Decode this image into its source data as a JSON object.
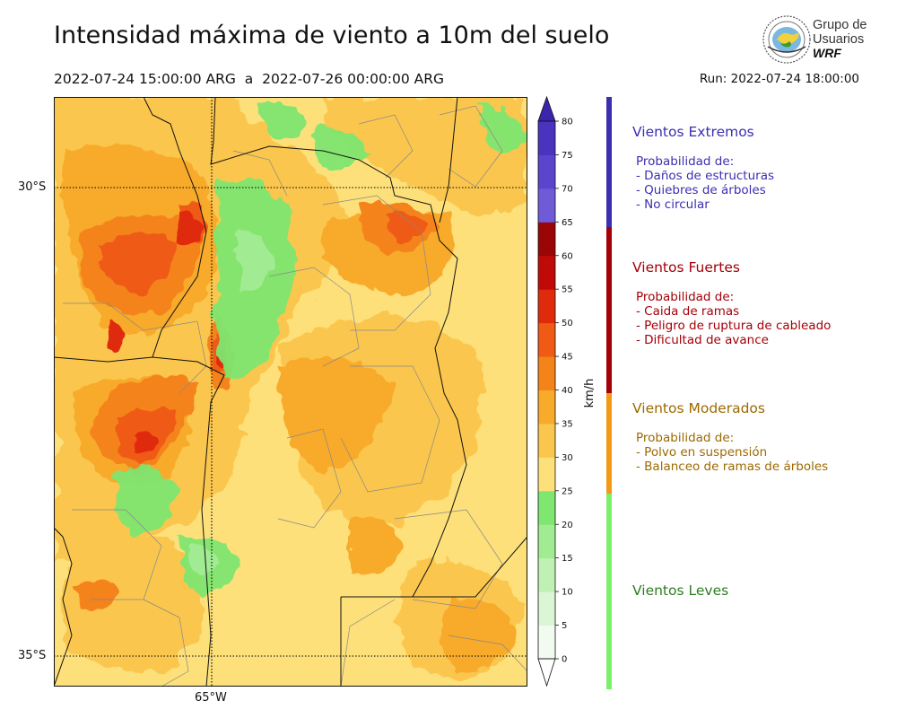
{
  "header": {
    "title": "Intensidad máxima de viento a 10m del suelo",
    "period": "2022-07-24 15:00:00 ARG  a  2022-07-26 00:00:00 ARG",
    "run": "Run: 2022-07-24 18:00:00"
  },
  "logo": {
    "line1": "Grupo de",
    "line2": "Usuarios",
    "line3": "WRF"
  },
  "map": {
    "lat_labels": [
      "30°S",
      "35°S"
    ],
    "lon_labels": [
      "65°W"
    ]
  },
  "colorbar": {
    "unit_label": "km/h",
    "ticks": [
      "0",
      "5",
      "10",
      "15",
      "20",
      "25",
      "30",
      "35",
      "40",
      "45",
      "50",
      "55",
      "60",
      "65",
      "70",
      "75",
      "80"
    ],
    "colors": [
      "#f2fbef",
      "#daf6d4",
      "#bff1b4",
      "#a1ec93",
      "#7fe670",
      "#fde07a",
      "#fbc64e",
      "#f8aa2a",
      "#f4831a",
      "#ef5a14",
      "#e02a0c",
      "#c00a08",
      "#9a0606",
      "#6f5ad8",
      "#5a45cc",
      "#4a34bf",
      "#3a26ad"
    ]
  },
  "legend": {
    "categories": [
      {
        "title": "Vientos Extremos",
        "color": "#3b2fb0",
        "lines": [
          "Probabilidad de:",
          "- Daños de estructuras",
          "- Quiebres de árboles",
          "- No circular"
        ]
      },
      {
        "title": "Vientos Fuertes",
        "color": "#a40008",
        "lines": [
          "Probabilidad de:",
          "- Caida de ramas",
          "- Peligro de ruptura de cableado",
          "- Dificultad de avance"
        ]
      },
      {
        "title": "Vientos Moderados",
        "color": "#9c6a00",
        "lines": [
          "Probabilidad de:",
          "- Polvo en suspensión",
          "- Balanceo de ramas de árboles"
        ]
      },
      {
        "title": "Vientos Leves",
        "color": "#2e7d22",
        "lines": []
      }
    ],
    "bar_colors": [
      "#3b2fb0",
      "#a40008",
      "#f39a14",
      "#7af06a"
    ]
  }
}
